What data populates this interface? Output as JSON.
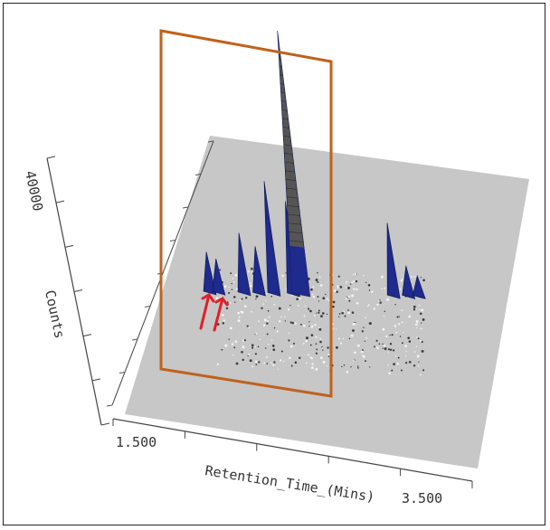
{
  "chart_data": {
    "type": "area",
    "title": "",
    "xlabel": "Retention_Time_(Mins)",
    "ylabel": "Counts",
    "x_tick_labels": [
      "1.500",
      "3.500"
    ],
    "y_tick_labels": [
      "40000"
    ],
    "xlim": [
      1.5,
      3.5
    ],
    "zlim": [
      0,
      40000
    ],
    "grid": false,
    "legend": "none",
    "colors": {
      "surface": "#c6c7c6",
      "peaks": "#1e2a8c",
      "tall_peak": "#555555",
      "highlight_box": "#c0611c",
      "arrows": "#e0202a"
    },
    "peaks": [
      {
        "x": 1.72,
        "counts": 6000
      },
      {
        "x": 1.78,
        "counts": 5000
      },
      {
        "x": 1.95,
        "counts": 9000
      },
      {
        "x": 2.05,
        "counts": 7000
      },
      {
        "x": 2.15,
        "counts": 17000
      },
      {
        "x": 2.28,
        "counts": 14000
      },
      {
        "x": 2.33,
        "counts": 40000
      },
      {
        "x": 2.95,
        "counts": 11000
      },
      {
        "x": 3.05,
        "counts": 4500
      },
      {
        "x": 3.12,
        "counts": 3000
      }
    ]
  }
}
